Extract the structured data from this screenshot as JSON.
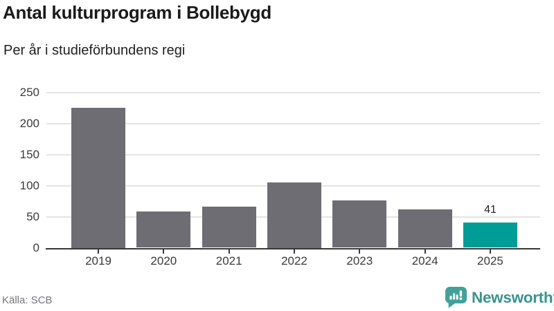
{
  "header": {
    "title": "Antal kulturprogram i Bollebygd",
    "subtitle": "Per år i studieförbundens regi"
  },
  "chart_data": {
    "type": "bar",
    "title": "Antal kulturprogram i Bollebygd",
    "subtitle": "Per år i studieförbundens regi",
    "categories": [
      "2019",
      "2020",
      "2021",
      "2022",
      "2023",
      "2024",
      "2025"
    ],
    "values": [
      225,
      58,
      66,
      105,
      76,
      62,
      41
    ],
    "xlabel": "",
    "ylabel": "",
    "ylim": [
      0,
      250
    ],
    "yticks": [
      0,
      50,
      100,
      150,
      200,
      250
    ],
    "grid": true,
    "legend": "none",
    "bar_color": "#6d6d73",
    "highlight": {
      "index": 6,
      "color": "#009c96"
    },
    "annotations": [
      {
        "index": 6,
        "text": "41"
      }
    ]
  },
  "footer": {
    "source": "Källa: SCB",
    "brand": "Newsworthy",
    "brand_icon": "speech-bubble-bar-chart-icon",
    "brand_color": "#38948e"
  }
}
